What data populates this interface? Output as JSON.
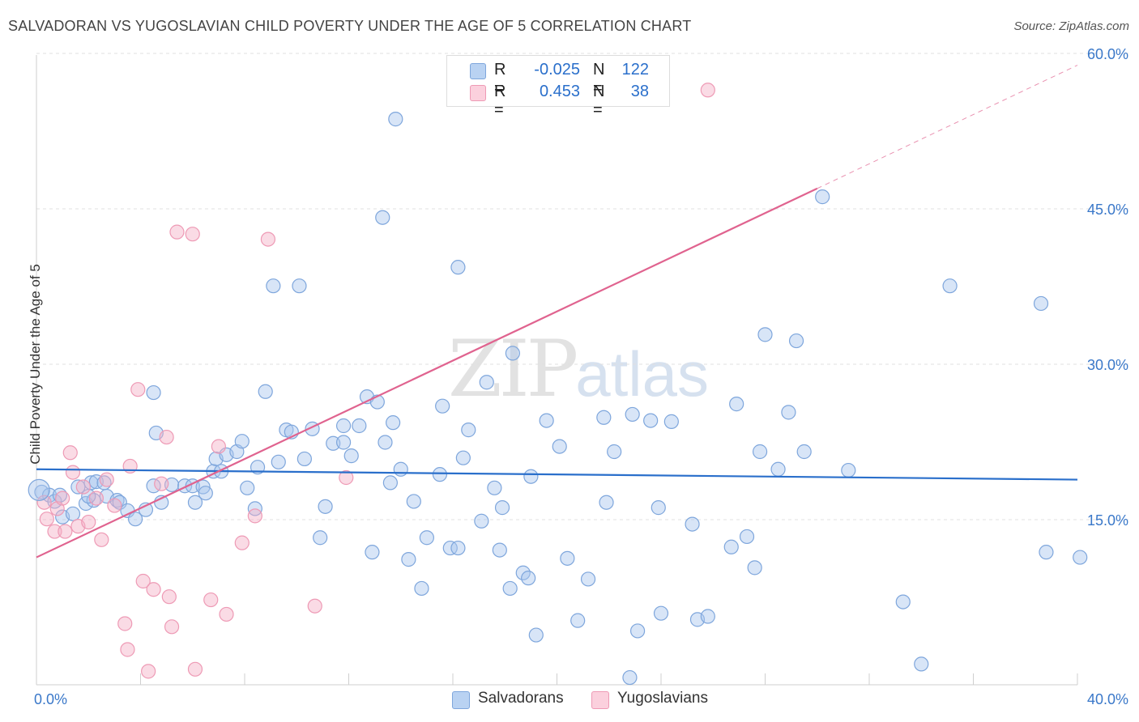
{
  "header": {
    "title": "SALVADORAN VS YUGOSLAVIAN CHILD POVERTY UNDER THE AGE OF 5 CORRELATION CHART",
    "source": "Source: ZipAtlas.com"
  },
  "watermark": {
    "zip": "ZIP",
    "atlas": "atlas"
  },
  "legend": {
    "r_label": "R =",
    "n_label": "N =",
    "rows": [
      {
        "r": "-0.025",
        "n": "122",
        "color": "#a9c8ef"
      },
      {
        "r": "0.453",
        "n": "38",
        "color": "#f4b3c7"
      }
    ]
  },
  "bottom_legend": {
    "series1": "Salvadorans",
    "series2": "Yugoslavians"
  },
  "colors": {
    "blue_fill": "rgba(168,198,238,0.45)",
    "blue_stroke": "#7ea6dc",
    "blue_line": "#2a6fcb",
    "pink_fill": "rgba(244,176,198,0.45)",
    "pink_stroke": "#ee9ab5",
    "pink_line": "#e0638f",
    "axis_text": "#3a78c9"
  },
  "chart_data": {
    "type": "scatter",
    "title": "SALVADORAN VS YUGOSLAVIAN CHILD POVERTY UNDER THE AGE OF 5 CORRELATION CHART",
    "xlabel": "",
    "ylabel": "Child Poverty Under the Age of 5",
    "xlim": [
      0,
      40
    ],
    "ylim": [
      0,
      60
    ],
    "x_tick_labels": [
      "0.0%",
      "40.0%"
    ],
    "y_ticks": [
      15,
      30,
      45,
      60
    ],
    "y_tick_labels": [
      "15.0%",
      "30.0%",
      "45.0%",
      "60.0%"
    ],
    "grid": true,
    "legend_position": "top-center",
    "series": [
      {
        "name": "Salvadorans",
        "r": -0.025,
        "n": 122,
        "trend": {
          "x0": 0,
          "y0": 20.8,
          "x1": 40,
          "y1": 19.8
        },
        "points": [
          [
            0.2,
            18.6
          ],
          [
            0.5,
            18.3
          ],
          [
            0.7,
            17.7
          ],
          [
            0.9,
            18.3
          ],
          [
            1.0,
            16.2
          ],
          [
            1.4,
            16.5
          ],
          [
            1.6,
            19.1
          ],
          [
            2.1,
            19.5
          ],
          [
            2.3,
            19.6
          ],
          [
            1.9,
            17.5
          ],
          [
            2.6,
            19.5
          ],
          [
            2.7,
            18.2
          ],
          [
            3.1,
            17.8
          ],
          [
            3.2,
            17.6
          ],
          [
            3.5,
            16.8
          ],
          [
            3.8,
            16.0
          ],
          [
            4.2,
            16.9
          ],
          [
            4.5,
            19.2
          ],
          [
            4.8,
            17.6
          ],
          [
            5.2,
            19.3
          ],
          [
            5.7,
            19.2
          ],
          [
            6.0,
            19.2
          ],
          [
            6.4,
            19.1
          ],
          [
            6.1,
            17.6
          ],
          [
            6.5,
            18.5
          ],
          [
            6.8,
            20.6
          ],
          [
            6.9,
            21.8
          ],
          [
            7.1,
            20.6
          ],
          [
            7.3,
            22.2
          ],
          [
            7.7,
            22.5
          ],
          [
            7.9,
            23.5
          ],
          [
            8.1,
            19.0
          ],
          [
            8.4,
            17.0
          ],
          [
            8.5,
            21.0
          ],
          [
            8.8,
            28.3
          ],
          [
            9.3,
            21.5
          ],
          [
            9.6,
            24.6
          ],
          [
            9.8,
            24.4
          ],
          [
            10.3,
            21.8
          ],
          [
            10.6,
            24.7
          ],
          [
            10.9,
            14.2
          ],
          [
            11.1,
            17.2
          ],
          [
            11.4,
            23.3
          ],
          [
            11.8,
            23.4
          ],
          [
            11.8,
            25.0
          ],
          [
            12.1,
            22.1
          ],
          [
            12.4,
            25.0
          ],
          [
            12.7,
            27.8
          ],
          [
            12.9,
            12.8
          ],
          [
            13.1,
            27.3
          ],
          [
            13.4,
            23.4
          ],
          [
            13.7,
            25.3
          ],
          [
            14.0,
            20.8
          ],
          [
            13.6,
            19.5
          ],
          [
            14.3,
            12.1
          ],
          [
            14.5,
            17.7
          ],
          [
            14.8,
            9.3
          ],
          [
            15.0,
            14.2
          ],
          [
            15.5,
            20.3
          ],
          [
            15.6,
            26.9
          ],
          [
            15.9,
            13.2
          ],
          [
            16.2,
            13.2
          ],
          [
            16.4,
            21.9
          ],
          [
            16.6,
            24.6
          ],
          [
            17.1,
            15.8
          ],
          [
            17.3,
            29.2
          ],
          [
            17.6,
            19.0
          ],
          [
            17.8,
            13.0
          ],
          [
            17.9,
            17.1
          ],
          [
            18.2,
            9.3
          ],
          [
            18.7,
            10.8
          ],
          [
            18.9,
            10.3
          ],
          [
            19.0,
            20.1
          ],
          [
            19.2,
            4.8
          ],
          [
            19.6,
            25.5
          ],
          [
            20.1,
            23.0
          ],
          [
            20.4,
            12.2
          ],
          [
            20.8,
            6.2
          ],
          [
            21.2,
            10.2
          ],
          [
            21.8,
            25.8
          ],
          [
            21.9,
            17.6
          ],
          [
            22.2,
            22.5
          ],
          [
            22.9,
            26.1
          ],
          [
            22.8,
            0.7
          ],
          [
            23.1,
            5.2
          ],
          [
            23.6,
            25.5
          ],
          [
            23.9,
            17.1
          ],
          [
            24.0,
            6.9
          ],
          [
            24.4,
            25.4
          ],
          [
            25.2,
            15.5
          ],
          [
            25.4,
            6.3
          ],
          [
            25.8,
            6.6
          ],
          [
            26.7,
            13.3
          ],
          [
            26.9,
            27.1
          ],
          [
            27.3,
            14.3
          ],
          [
            27.6,
            11.3
          ],
          [
            27.8,
            22.5
          ],
          [
            28.0,
            33.8
          ],
          [
            28.5,
            20.8
          ],
          [
            28.9,
            26.3
          ],
          [
            29.2,
            33.2
          ],
          [
            29.5,
            22.5
          ],
          [
            9.1,
            38.5
          ],
          [
            10.1,
            38.5
          ],
          [
            13.3,
            45.1
          ],
          [
            13.8,
            54.6
          ],
          [
            16.2,
            40.3
          ],
          [
            18.3,
            32.0
          ],
          [
            30.2,
            47.1
          ],
          [
            31.2,
            20.7
          ],
          [
            33.3,
            8.0
          ],
          [
            34.0,
            2.0
          ],
          [
            35.1,
            38.5
          ],
          [
            38.6,
            36.8
          ],
          [
            38.8,
            12.8
          ],
          [
            40.1,
            12.3
          ],
          [
            4.6,
            24.3
          ],
          [
            4.5,
            28.2
          ],
          [
            2.2,
            17.8
          ],
          [
            2.0,
            18.2
          ]
        ]
      },
      {
        "name": "Yugoslavians",
        "r": 0.453,
        "n": 38,
        "trend": {
          "x0": 0,
          "y0": 12.3,
          "x1": 30.0,
          "y1": 47.9,
          "dashed_to": {
            "x": 40,
            "y": 59.8
          }
        },
        "points": [
          [
            0.3,
            17.6
          ],
          [
            0.4,
            16.0
          ],
          [
            0.7,
            14.8
          ],
          [
            0.8,
            17.0
          ],
          [
            1.0,
            18.0
          ],
          [
            1.1,
            14.8
          ],
          [
            1.3,
            22.4
          ],
          [
            1.4,
            20.5
          ],
          [
            1.6,
            15.3
          ],
          [
            1.8,
            19.1
          ],
          [
            2.0,
            15.7
          ],
          [
            2.3,
            18.0
          ],
          [
            2.5,
            14.0
          ],
          [
            2.7,
            19.8
          ],
          [
            3.0,
            17.3
          ],
          [
            3.4,
            5.9
          ],
          [
            3.6,
            21.1
          ],
          [
            3.9,
            28.5
          ],
          [
            4.1,
            10.0
          ],
          [
            4.3,
            1.3
          ],
          [
            4.5,
            9.2
          ],
          [
            4.8,
            19.4
          ],
          [
            5.0,
            23.9
          ],
          [
            5.1,
            8.5
          ],
          [
            5.2,
            5.6
          ],
          [
            5.4,
            43.7
          ],
          [
            6.0,
            43.5
          ],
          [
            6.1,
            1.5
          ],
          [
            6.7,
            8.2
          ],
          [
            7.0,
            23.0
          ],
          [
            7.3,
            6.8
          ],
          [
            7.9,
            13.7
          ],
          [
            8.4,
            16.3
          ],
          [
            8.9,
            43.0
          ],
          [
            10.7,
            7.6
          ],
          [
            11.9,
            20.0
          ],
          [
            25.8,
            57.4
          ],
          [
            3.5,
            3.4
          ]
        ]
      }
    ]
  }
}
